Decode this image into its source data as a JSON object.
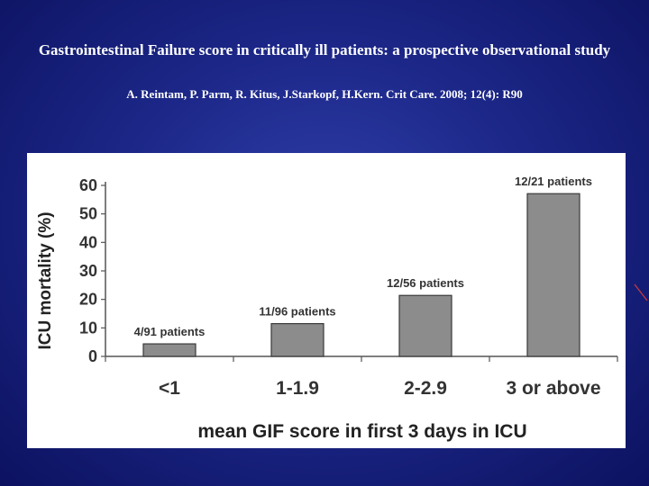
{
  "slide": {
    "title": "Gastrointestinal Failure score in critically ill patients: a prospective observational study",
    "citation": "A. Reintam, P. Parm, R. Kitus, J.Starkopf, H.Kern. Crit Care. 2008; 12(4): R90"
  },
  "chart_data": {
    "type": "bar",
    "categories": [
      "<1",
      "1-1.9",
      "2-2.9",
      "3 or above"
    ],
    "values": [
      4.4,
      11.5,
      21.4,
      57.1
    ],
    "data_labels": [
      "4/91 patients",
      "11/96 patients",
      "12/56 patients",
      "12/21 patients"
    ],
    "xlabel": "mean GIF score in first 3 days in ICU",
    "ylabel": "ICU mortality (%)",
    "ylim": [
      0,
      60
    ],
    "yticks": [
      0,
      10,
      20,
      30,
      40,
      50,
      60
    ],
    "grid": false,
    "legend": "none",
    "bar_color": "#8c8c8c",
    "bar_edge_color": "#3a3a3a"
  }
}
